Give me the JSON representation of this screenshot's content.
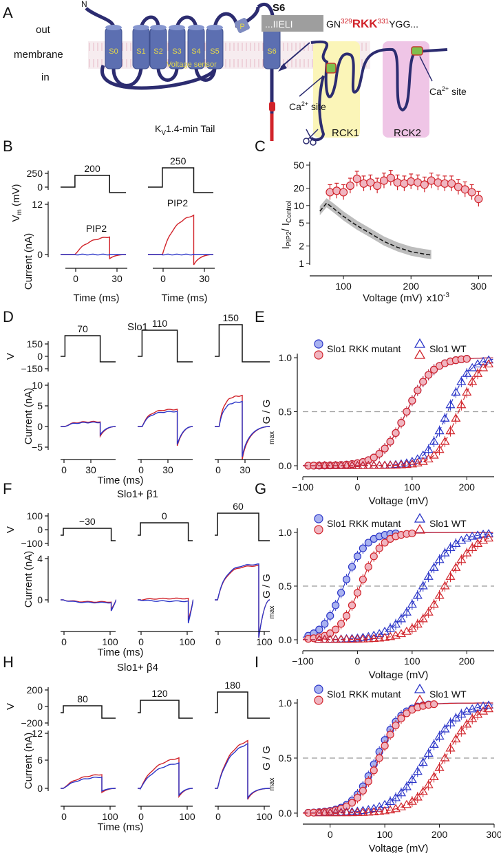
{
  "panels": {
    "A": "A",
    "B": "B",
    "C": "C",
    "D": "D",
    "E": "E",
    "F": "F",
    "G": "G",
    "H": "H",
    "I": "I"
  },
  "colors": {
    "red": "#d1232a",
    "blue": "#2b35c8",
    "helix": "#5c6fb1",
    "pink": "#f0b5c0",
    "grey": "#bdbdbd",
    "yellow": "#fbf5b8",
    "magenta": "#efc5e6"
  },
  "panelA": {
    "n_term": "N",
    "out": "out",
    "membrane": "membrane",
    "in": "in",
    "segments": [
      "S0",
      "S1",
      "S2",
      "S3",
      "S4",
      "S5",
      "S6"
    ],
    "pore": "P",
    "voltage_sensor": "Voltage sensor",
    "s6_title": "S6",
    "s6_box": "...IIELI",
    "s6_gn": "GN",
    "s6_n1": "329",
    "s6_rkk": "RKK",
    "s6_n2": "331",
    "s6_tail": "YGG...",
    "tail_k": "K",
    "tail_v": "V",
    "tail_rest": "1.4-min Tail",
    "ca_site_left": "Ca",
    "ca_site_right": "Ca",
    "ca_sup": "2+",
    "ca_word": " site",
    "rck1": "RCK1",
    "rck2": "RCK2"
  },
  "panelB": {
    "ylabel_vm": "V",
    "ylabel_vm_sub": "m",
    "ylabel_vm_unit": " (mV)",
    "ylabel_cur": "Current (nA)",
    "xlabel": "Time (ms)",
    "vm_ticks": [
      "250",
      "0"
    ],
    "cur_ticks": [
      "12",
      "0"
    ],
    "x_ticks": [
      "0",
      "30"
    ],
    "steps": [
      "200",
      "250"
    ],
    "pip2": "PIP2"
  },
  "panelC": {
    "ylabel_i": "I",
    "ylabel_sub1": "PIP2",
    "ylabel_slash": "/ I",
    "ylabel_sub2": "Control",
    "xlabel": "Voltage (mV)",
    "x_mult": "x10",
    "x_mult_exp": "-3",
    "y_ticks": [
      "50",
      "20",
      "10",
      "5",
      "2",
      "1"
    ],
    "x_ticks": [
      "100",
      "200",
      "300"
    ],
    "chart_data": {
      "type": "scatter",
      "yscale": "log",
      "xlim": [
        50,
        320
      ],
      "ylim": [
        1,
        50
      ],
      "series": [
        {
          "x": [
            80,
            90,
            100,
            110,
            120,
            130,
            140,
            150,
            160,
            170,
            180,
            190,
            200,
            210,
            220,
            230,
            240,
            250,
            260,
            270,
            280,
            290,
            300
          ],
          "values": [
            17,
            18,
            17,
            22,
            29,
            24,
            25,
            22,
            27,
            30,
            25,
            24,
            26,
            25,
            23,
            27,
            25,
            24,
            24,
            21,
            19,
            17,
            13
          ]
        },
        {
          "x": [
            65,
            75,
            85,
            100,
            120,
            140,
            160,
            180,
            200,
            220,
            230
          ],
          "values": [
            8,
            11,
            9,
            6.5,
            4.5,
            3.3,
            2.4,
            1.9,
            1.6,
            1.45,
            1.4
          ]
        }
      ]
    }
  },
  "panelD": {
    "title": "Slo1",
    "vm_ticks": [
      "150",
      "0",
      "−150"
    ],
    "cur_ticks": [
      "10",
      "5",
      "0",
      "−5"
    ],
    "x_ticks": [
      "0",
      "30"
    ],
    "steps": [
      "70",
      "110",
      "150"
    ],
    "xlabel": "Time (ms)",
    "ylabel_cur": "Current (nA)"
  },
  "panelE": {
    "legend_mut": "Slo1 RKK mutant",
    "legend_wt": "Slo1 WT",
    "ylabel": "G / G",
    "ylabel_sub": "max",
    "xlabel": "Voltage (mV)",
    "y_ticks": [
      "1.0",
      "0.5",
      "0.0"
    ],
    "x_ticks": [
      "−100",
      "0",
      "100",
      "200"
    ],
    "chart_data": {
      "type": "scatter",
      "xlim": [
        -100,
        250
      ],
      "ylim": [
        0,
        1
      ],
      "half_line": 0.5,
      "series": [
        {
          "v_half": 90,
          "slope": 24
        },
        {
          "v_half": 90,
          "slope": 24
        },
        {
          "v_half": 165,
          "slope": 20
        },
        {
          "v_half": 185,
          "slope": 20
        }
      ]
    }
  },
  "panelF": {
    "title": "Slo1+ β1",
    "vm_ticks": [
      "100",
      "0",
      "−100"
    ],
    "cur_ticks": [
      "4",
      "0"
    ],
    "x_ticks": [
      "0",
      "100"
    ],
    "steps": [
      "−30",
      "0",
      "60"
    ],
    "xlabel": "Time (ms)",
    "ylabel_cur": "Current (nA)"
  },
  "panelG": {
    "legend_mut": "Slo1 RKK mutant",
    "legend_wt": "Slo1 WT",
    "ylabel": "G / G",
    "ylabel_sub": "max",
    "xlabel": "Voltage (mV)",
    "y_ticks": [
      "1.0",
      "0.5",
      "0.0"
    ],
    "x_ticks": [
      "−100",
      "0",
      "100",
      "200"
    ],
    "chart_data": {
      "type": "scatter",
      "xlim": [
        -100,
        250
      ],
      "ylim": [
        0,
        1
      ],
      "half_line": 0.5,
      "series": [
        {
          "v_half": -25,
          "slope": 20
        },
        {
          "v_half": 5,
          "slope": 20
        },
        {
          "v_half": 120,
          "slope": 28
        },
        {
          "v_half": 160,
          "slope": 28
        }
      ]
    }
  },
  "panelH": {
    "title": "Slo1+ β4",
    "vm_ticks": [
      "200",
      "0",
      "−200"
    ],
    "cur_ticks": [
      "12",
      "6",
      "0"
    ],
    "x_ticks": [
      "0",
      "100"
    ],
    "steps": [
      "80",
      "120",
      "180"
    ],
    "xlabel": "Time (ms)",
    "ylabel_cur": "Current (nA)"
  },
  "panelI": {
    "legend_mut": "Slo1 RKK mutant",
    "legend_wt": "Slo1 WT",
    "ylabel": "G / G",
    "ylabel_sub": "max",
    "xlabel": "Voltage (mV)",
    "y_ticks": [
      "1.0",
      "0.5",
      "0.0"
    ],
    "x_ticks": [
      "0",
      "100",
      "200",
      "300"
    ],
    "chart_data": {
      "type": "scatter",
      "xlim": [
        -50,
        300
      ],
      "ylim": [
        0,
        1
      ],
      "half_line": 0.5,
      "series": [
        {
          "v_half": 85,
          "slope": 22
        },
        {
          "v_half": 90,
          "slope": 22
        },
        {
          "v_half": 175,
          "slope": 30
        },
        {
          "v_half": 210,
          "slope": 28
        }
      ]
    }
  }
}
